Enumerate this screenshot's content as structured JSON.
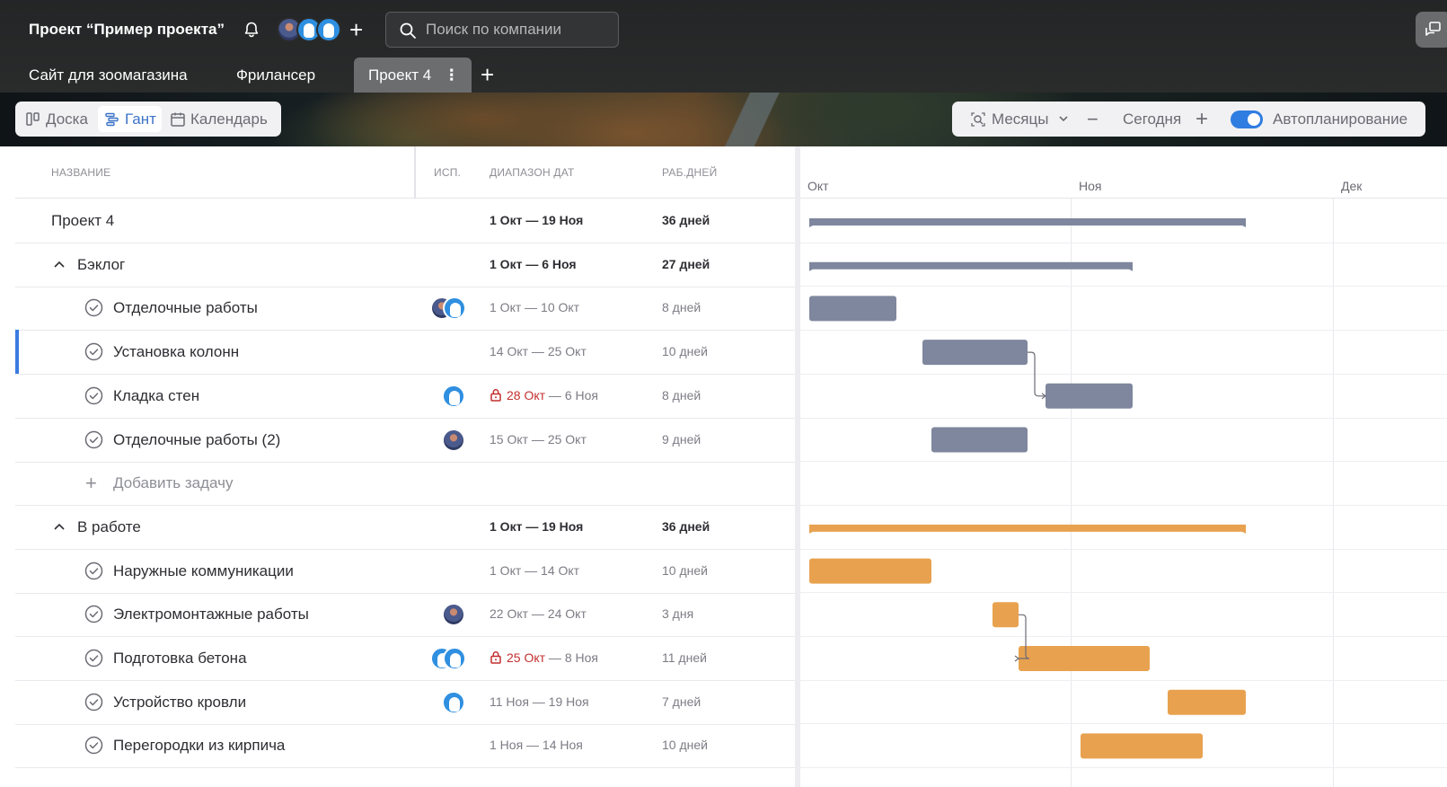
{
  "header": {
    "project_title": "Проект “Пример проекта”",
    "search_placeholder": "Поиск по компании",
    "tabs": [
      {
        "label": "Сайт для зоомагазина"
      },
      {
        "label": "Фрилансер"
      },
      {
        "label": "Проект 4",
        "active": true
      }
    ]
  },
  "toolbar": {
    "views": [
      {
        "label": "Доска",
        "icon": "board-icon"
      },
      {
        "label": "Гант",
        "icon": "gantt-icon",
        "active": true
      },
      {
        "label": "Календарь",
        "icon": "calendar-icon"
      }
    ],
    "scale_label": "Месяцы",
    "today_label": "Сегодня",
    "autoplan_label": "Автопланирование",
    "autoplan_enabled": true
  },
  "table": {
    "columns": {
      "name": "НАЗВАНИЕ",
      "assignee": "ИСП.",
      "range": "ДИАПАЗОН ДАТ",
      "days": "РАБ.ДНЕЙ"
    },
    "rows": [
      {
        "kind": "project",
        "name": "Проект 4",
        "range": "1 Окт — 19 Ноя",
        "days": "36 дней"
      },
      {
        "kind": "group",
        "name": "Бэклог",
        "range": "1 Окт — 6 Ноя",
        "days": "27 дней"
      },
      {
        "kind": "task",
        "name": "Отделочные работы",
        "assignees": [
          "photo",
          "blue"
        ],
        "range": "1 Окт — 10 Окт",
        "days": "8 дней"
      },
      {
        "kind": "task",
        "name": "Установка колонн",
        "assignees": [],
        "range": "14 Окт — 25 Окт",
        "days": "10 дней",
        "selected": true
      },
      {
        "kind": "task",
        "name": "Кладка стен",
        "assignees": [
          "blue"
        ],
        "range_locked": "28 Окт",
        "range_rest": " — 6 Ноя",
        "days": "8 дней"
      },
      {
        "kind": "task",
        "name": "Отделочные работы (2)",
        "assignees": [
          "photo"
        ],
        "range": "15 Окт — 25 Окт",
        "days": "9 дней"
      },
      {
        "kind": "add",
        "name": "Добавить задачу"
      },
      {
        "kind": "group",
        "name": "В работе",
        "range": "1 Окт — 19 Ноя",
        "days": "36 дней"
      },
      {
        "kind": "task",
        "name": "Наружные коммуникации",
        "assignees": [],
        "range": "1 Окт — 14 Окт",
        "days": "10 дней"
      },
      {
        "kind": "task",
        "name": "Электромонтажные работы",
        "assignees": [
          "photo"
        ],
        "range": "22 Окт — 24 Окт",
        "days": "3 дня"
      },
      {
        "kind": "task",
        "name": "Подготовка бетона",
        "assignees": [
          "blue",
          "blue"
        ],
        "range_locked": "25 Окт",
        "range_rest": " — 8 Ноя",
        "days": "11 дней"
      },
      {
        "kind": "task",
        "name": "Устройство кровли",
        "assignees": [
          "blue"
        ],
        "range": "11 Ноя — 19 Ноя",
        "days": "7 дней"
      },
      {
        "kind": "task",
        "name": "Перегородки из кирпича",
        "assignees": [],
        "range": "1 Ноя — 14 Ноя",
        "days": "10 дней"
      }
    ]
  },
  "gantt": {
    "months": [
      "Окт",
      "Ноя",
      "Дек"
    ],
    "colors": {
      "backlog": "#7f879e",
      "in_progress": "#e8a24f",
      "link": "#6b6b74"
    }
  }
}
